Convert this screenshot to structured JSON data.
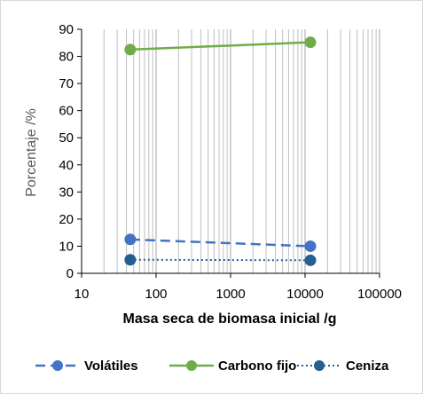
{
  "chart_data": {
    "type": "line",
    "xscale": "log",
    "xlim": [
      10,
      100000
    ],
    "ylim": [
      0,
      90
    ],
    "xticks": [
      10,
      100,
      1000,
      10000,
      100000
    ],
    "xtick_labels": [
      "10",
      "100",
      "1000",
      "10000",
      "100000"
    ],
    "yticks": [
      0,
      10,
      20,
      30,
      40,
      50,
      60,
      70,
      80,
      90
    ],
    "ytick_labels": [
      "0",
      "10",
      "20",
      "30",
      "40",
      "50",
      "60",
      "70",
      "80",
      "90"
    ],
    "xlabel": "Masa seca de biomasa inicial /g",
    "ylabel": "Porcentaje /%",
    "grid": "vertical major and minor",
    "legend_position": "bottom",
    "series": [
      {
        "name": "Volátiles",
        "x": [
          45,
          11800
        ],
        "values": [
          12.5,
          10
        ],
        "color": "#4472c4",
        "line_style": "dashed"
      },
      {
        "name": "Carbono fijo",
        "x": [
          45,
          11800
        ],
        "values": [
          82.5,
          85.2
        ],
        "color": "#70ad47",
        "line_style": "solid"
      },
      {
        "name": "Ceniza",
        "x": [
          45,
          11800
        ],
        "values": [
          5,
          4.8
        ],
        "color": "#255e91",
        "line_style": "dotted"
      }
    ]
  }
}
